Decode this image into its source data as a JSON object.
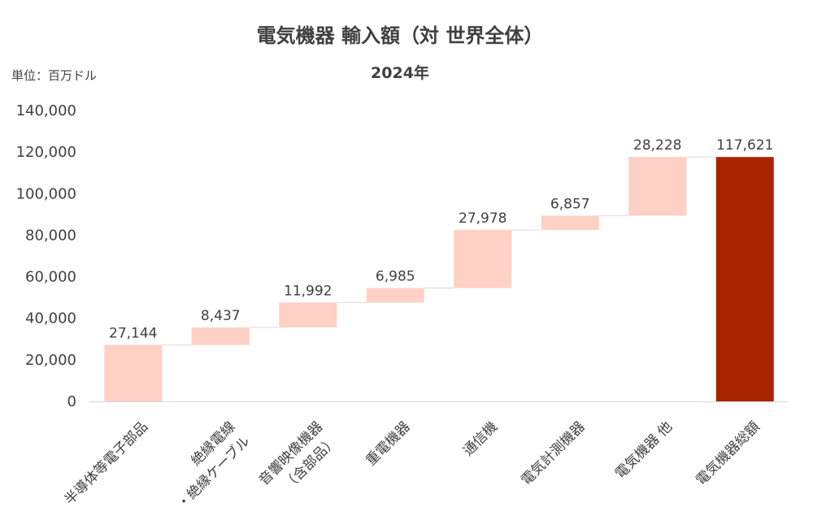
{
  "chart_data": {
    "type": "bar",
    "subtype": "waterfall",
    "title": "電気機器 輸入額（対 世界全体）",
    "subtitle": "2024年",
    "unit_label": "単位：百万ドル",
    "categories": [
      [
        "半導体等電子部品"
      ],
      [
        "絶縁電線",
        "・絶縁ケーブル"
      ],
      [
        "音響映像機器",
        "（含部品）"
      ],
      [
        "重電機器"
      ],
      [
        "通信機"
      ],
      [
        "電気計測機器"
      ],
      [
        "電気機器 他"
      ],
      [
        "電気機器総額"
      ]
    ],
    "values": [
      27144,
      8437,
      11992,
      6985,
      27978,
      6857,
      28228,
      117621
    ],
    "value_labels": [
      "27,144",
      "8,437",
      "11,992",
      "6,985",
      "27,978",
      "6,857",
      "28,228",
      "117,621"
    ],
    "is_total": [
      false,
      false,
      false,
      false,
      false,
      false,
      false,
      true
    ],
    "ylim": [
      0,
      140000
    ],
    "yticks": [
      0,
      20000,
      40000,
      60000,
      80000,
      100000,
      120000,
      140000
    ],
    "ytick_labels": [
      "0",
      "20,000",
      "40,000",
      "60,000",
      "80,000",
      "100,000",
      "120,000",
      "140,000"
    ],
    "grid": false,
    "colors": {
      "increment": "#ffd0c4",
      "total": "#a82400",
      "connector": "#d9d9d9",
      "axis": "#d9d9d9"
    }
  }
}
